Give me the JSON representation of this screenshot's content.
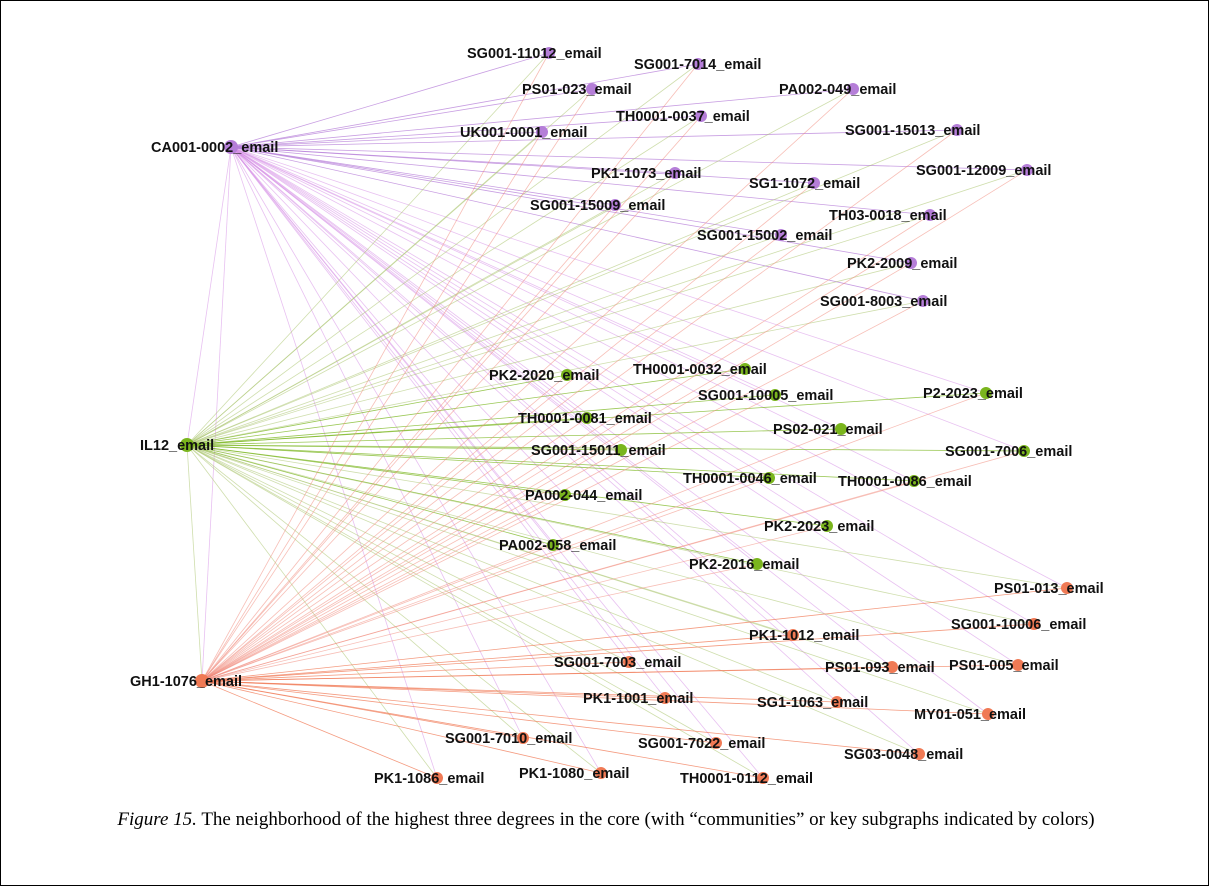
{
  "caption": {
    "figure_label": "Figure 15.",
    "text": " The neighborhood of the highest three degrees in the core (with “communities” or key subgraphs indicated by colors)"
  },
  "communities": {
    "purple": {
      "color": "#b57ed8",
      "edge_color": "#d68ee6"
    },
    "green": {
      "color": "#7ab51d",
      "edge_color": "#a8c26a"
    },
    "red": {
      "color": "#f07a55",
      "edge_color": "#f0887a"
    }
  },
  "hubs": [
    {
      "id": "CA001-0002_email",
      "community": "purple"
    },
    {
      "id": "IL12_email",
      "community": "green"
    },
    {
      "id": "GH1-1076_email",
      "community": "red"
    }
  ],
  "nodes": [
    {
      "id": "SG001-11012_email",
      "community": "purple"
    },
    {
      "id": "SG001-7014_email",
      "community": "purple"
    },
    {
      "id": "PS01-023_email",
      "community": "purple"
    },
    {
      "id": "PA002-049_email",
      "community": "purple"
    },
    {
      "id": "TH0001-0037_email",
      "community": "purple"
    },
    {
      "id": "UK001-0001_email",
      "community": "purple"
    },
    {
      "id": "SG001-15013_email",
      "community": "purple"
    },
    {
      "id": "SG001-12009_email",
      "community": "purple"
    },
    {
      "id": "PK1-1073_email",
      "community": "purple"
    },
    {
      "id": "SG1-1072_email",
      "community": "purple"
    },
    {
      "id": "SG001-15009_email",
      "community": "purple"
    },
    {
      "id": "TH03-0018_email",
      "community": "purple"
    },
    {
      "id": "SG001-15002_email",
      "community": "purple"
    },
    {
      "id": "PK2-2009_email",
      "community": "purple"
    },
    {
      "id": "SG001-8003_email",
      "community": "purple"
    },
    {
      "id": "TH0001-0032_email",
      "community": "green"
    },
    {
      "id": "PK2-2020_email",
      "community": "green"
    },
    {
      "id": "SG001-10005_email",
      "community": "green"
    },
    {
      "id": "P2-2023_email",
      "community": "green"
    },
    {
      "id": "TH0001-0081_email",
      "community": "green"
    },
    {
      "id": "PS02-021_email",
      "community": "green"
    },
    {
      "id": "SG001-15011_email",
      "community": "green"
    },
    {
      "id": "SG001-7006_email",
      "community": "green"
    },
    {
      "id": "TH0001-0046_email",
      "community": "green"
    },
    {
      "id": "TH0001-0086_email",
      "community": "green"
    },
    {
      "id": "PA002-044_email",
      "community": "green"
    },
    {
      "id": "PK2-2023_email",
      "community": "green"
    },
    {
      "id": "PA002-058_email",
      "community": "green"
    },
    {
      "id": "PK2-2016_email",
      "community": "green"
    },
    {
      "id": "PS01-013_email",
      "community": "red"
    },
    {
      "id": "SG001-10006_email",
      "community": "red"
    },
    {
      "id": "PK1-1012_email",
      "community": "red"
    },
    {
      "id": "SG001-7003_email",
      "community": "red"
    },
    {
      "id": "PS01-093_email",
      "community": "red"
    },
    {
      "id": "PS01-005_email",
      "community": "red"
    },
    {
      "id": "PK1-1001_email",
      "community": "red"
    },
    {
      "id": "SG1-1063_email",
      "community": "red"
    },
    {
      "id": "MY01-051_email",
      "community": "red"
    },
    {
      "id": "SG001-7010_email",
      "community": "red"
    },
    {
      "id": "SG001-7022_email",
      "community": "red"
    },
    {
      "id": "SG03-0048_email",
      "community": "red"
    },
    {
      "id": "PK1-1086_email",
      "community": "red"
    },
    {
      "id": "PK1-1080_email",
      "community": "red"
    },
    {
      "id": "TH0001-0112_email",
      "community": "red"
    }
  ]
}
